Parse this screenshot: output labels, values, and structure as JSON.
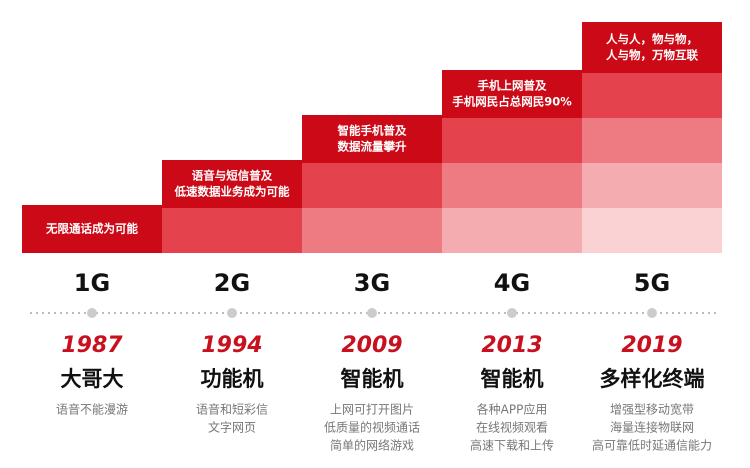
{
  "generations": [
    {
      "bar_text": [
        "无限通话成为可能"
      ],
      "generation": "1G",
      "year": "1987",
      "device": "大哥大",
      "description": [
        "语音不能漫游"
      ]
    },
    {
      "bar_text": [
        "语音与短信普及",
        "低速数据业务成为可能"
      ],
      "generation": "2G",
      "year": "1994",
      "device": "功能机",
      "description": [
        "语音和短彩信",
        "文字网页"
      ]
    },
    {
      "bar_text": [
        "智能手机普及",
        "数据流量攀升"
      ],
      "generation": "3G",
      "year": "2009",
      "device": "智能机",
      "description": [
        "上网可打开图片",
        "低质量的视频通话",
        "简单的网络游戏"
      ]
    },
    {
      "bar_text": [
        "手机上网普及",
        "手机网民占总网民90%"
      ],
      "generation": "4G",
      "year": "2013",
      "device": "智能机",
      "description": [
        "各种APP应用",
        "在线视频观看",
        "高速下载和上传"
      ]
    },
    {
      "bar_text": [
        "人与人，物与物，",
        "人与物，万物互联"
      ],
      "generation": "5G",
      "year": "2019",
      "device": "多样化终端",
      "description": [
        "增强型移动宽带",
        "海量连接物联网",
        "高可靠低时延通信能力"
      ]
    }
  ]
}
